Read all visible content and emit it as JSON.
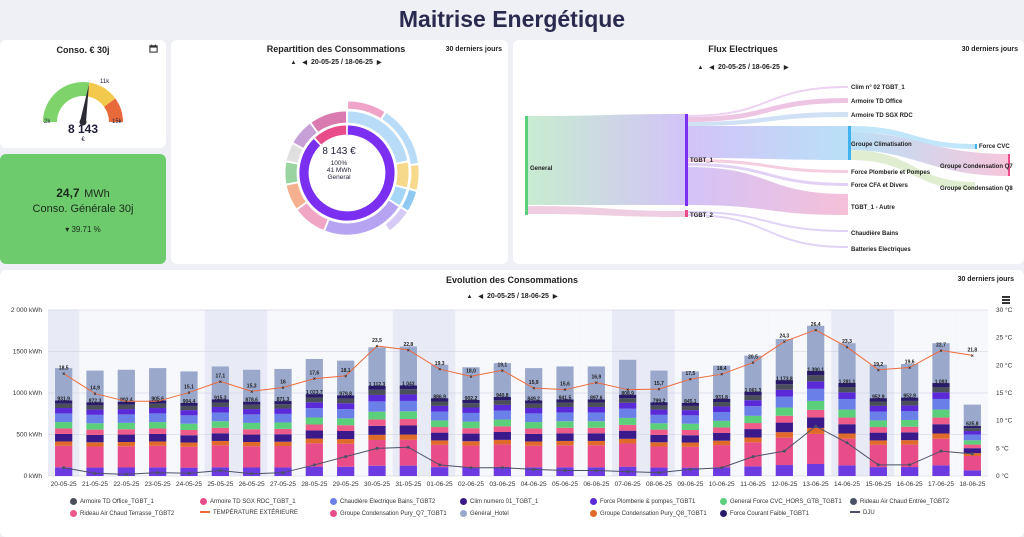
{
  "page_title": "Maitrise Energétique",
  "gauge_card": {
    "title": "Conso. € 30j",
    "value": "8 143",
    "unit": "€",
    "min": "2k",
    "mid": "11k",
    "max": "15k",
    "level": 0.55,
    "colors": {
      "low": "#7ed36a",
      "mid": "#f3c94d",
      "high": "#e86a3a"
    }
  },
  "summary_card": {
    "value": "24,7",
    "unit": "MWh",
    "label": "Conso. Générale 30j",
    "trend": "39.71 %"
  },
  "repartition": {
    "title": "Repartition des Consommations",
    "period": "30 derniers jours",
    "range": "20-05-25 / 18-06-25",
    "center_value": "8 143 €",
    "center_pct": "100%",
    "center_energy": "41 MWh",
    "center_label": "General",
    "inner_segments": [
      {
        "color": "#7b2ff0",
        "fraction": 0.88
      },
      {
        "color": "#e84d8a",
        "fraction": 0.12
      }
    ],
    "middle_segments": [
      {
        "color": "#b8dcf7",
        "fraction": 0.22
      },
      {
        "color": "#f7d98b",
        "fraction": 0.07
      },
      {
        "color": "#a5d6f5",
        "fraction": 0.05
      },
      {
        "color": "#b6a4f2",
        "fraction": 0.22
      },
      {
        "color": "#f0a5c5",
        "fraction": 0.09
      },
      {
        "color": "#f4b08f",
        "fraction": 0.07
      },
      {
        "color": "#9ad4a0",
        "fraction": 0.06
      },
      {
        "color": "#e0e0e0",
        "fraction": 0.05
      },
      {
        "color": "#c8a0d8",
        "fraction": 0.07
      },
      {
        "color": "#d97ab0",
        "fraction": 0.1
      }
    ],
    "outer_segments": [
      {
        "color": "#f0a5c8",
        "fraction": 0.09
      },
      {
        "color": "#b8dcf7",
        "fraction": 0.14
      },
      {
        "color": "#f7d98b",
        "fraction": 0.06
      },
      {
        "color": "#8fc8f0",
        "fraction": 0.05
      },
      {
        "color": "#d6cbf5",
        "fraction": 0.06
      }
    ]
  },
  "flux": {
    "title": "Flux Electriques",
    "period": "30 derniers jours",
    "range": "20-05-25 / 18-06-25",
    "nodes": {
      "general": "General",
      "tgbt1": "TGBT_1",
      "tgbt2": "TGBT_2",
      "clim02": "Clim n° 02 TGBT_1",
      "armoire_office": "Armoire TD Office",
      "armoire_sgx": "Armoire TD SGX RDC",
      "groupe_clim": "Groupe Climatisation",
      "force_plomberie": "Force Plomberie et Pompes",
      "force_cfa": "Force CFA et Divers",
      "tgbt1_autre": "TGBT_1 - Autre",
      "chaudiere": "Chaudière Bains",
      "batteries": "Batteries Electriques",
      "force_cvc": "Force CVC",
      "groupe_q7": "Groupe Condensation Q7",
      "groupe_q8": "Groupe Condensation Q8"
    }
  },
  "evolution": {
    "title": "Evolution des Consommations",
    "period": "30 derniers jours",
    "range": "20-05-25 / 18-06-25"
  },
  "chart_data": {
    "type": "bar",
    "title": "Evolution des Consommations",
    "categories": [
      "20-05-25",
      "21-05-25",
      "22-05-25",
      "23-05-25",
      "24-05-25",
      "25-05-25",
      "26-05-25",
      "27-05-25",
      "28-05-25",
      "29-05-25",
      "30-05-25",
      "31-05-25",
      "01-06-25",
      "02-06-25",
      "03-06-25",
      "04-06-25",
      "05-06-25",
      "06-06-25",
      "07-06-25",
      "08-06-25",
      "09-06-25",
      "10-06-25",
      "11-06-25",
      "12-06-25",
      "13-06-25",
      "14-06-25",
      "15-06-25",
      "16-06-25",
      "17-06-25",
      "18-06-25"
    ],
    "y_left": {
      "ticks": [
        "0 kWh",
        "500 kWh",
        "1000 kWh",
        "1500 kWh",
        "2 000 kWh"
      ],
      "range": [
        0,
        2000
      ]
    },
    "y_right": {
      "ticks": [
        "0 °C",
        "5 °C",
        "10 °C",
        "15 °C",
        "20 °C",
        "25 °C",
        "30 °C"
      ],
      "range": [
        0,
        30
      ]
    },
    "totals": [
      1300,
      1270,
      1280,
      1300,
      1260,
      1320,
      1280,
      1290,
      1410,
      1390,
      1550,
      1560,
      1340,
      1310,
      1360,
      1300,
      1320,
      1320,
      1400,
      1270,
      1260,
      1330,
      1450,
      1650,
      1810,
      1600,
      1340,
      1350,
      1600,
      860
    ],
    "general_labels": [
      "931,9",
      "872,3",
      "902,4",
      "905,6",
      "904,4",
      "915,3",
      "878,6",
      "871,3",
      "1 023,7",
      "979,8",
      "1 112,3",
      "1 043",
      "886,9",
      "902,2",
      "940,8",
      "849,2",
      "941,5",
      "897,6",
      "808,9",
      "799,2",
      "845,1",
      "931,8",
      "1 061,3",
      "1 173,8",
      "1 390,1",
      "1 281,1",
      "952,9",
      "952,9",
      "1 093",
      "635,8"
    ],
    "temperature": [
      18.5,
      14.9,
      13.5,
      13.5,
      15.1,
      17.1,
      15.3,
      16.0,
      17.6,
      18.1,
      23.5,
      22.8,
      19.3,
      18.0,
      19.1,
      15.9,
      15.6,
      16.9,
      15.6,
      15.7,
      17.5,
      18.4,
      20.5,
      24.3,
      26.4,
      23.3,
      19.2,
      19.6,
      22.7,
      21.8
    ],
    "temperature_labels": [
      "18,5",
      "14,9",
      "",
      "",
      "15,1",
      "17,1",
      "15,3",
      "16",
      "17,6",
      "18,1",
      "23,5",
      "22,8",
      "19,3",
      "18,0",
      "19,1",
      "15,9",
      "15,6",
      "16,9",
      "",
      "15,7",
      "17,5",
      "18,4",
      "20,5",
      "24,3",
      "26,4",
      "23,3",
      "19,2",
      "19,6",
      "22,7",
      "21,8"
    ],
    "dju": [
      1.5,
      0.5,
      0.3,
      0.6,
      0.5,
      1.0,
      0.4,
      0.6,
      2.0,
      3.5,
      5.0,
      5.2,
      2.0,
      1.5,
      1.5,
      1.2,
      1.0,
      1.0,
      0.8,
      0.6,
      1.2,
      1.5,
      3.5,
      4.5,
      9.0,
      6.0,
      2.0,
      2.0,
      4.5,
      4.0
    ],
    "weekend_bands": [
      0,
      4,
      5,
      11,
      12,
      18,
      19,
      25,
      26
    ],
    "series_colors": [
      "#4a4f5a",
      "#e84d8a",
      "#6b7fe8",
      "#3a1a8a",
      "#5a2ad8",
      "#5ccf7a",
      "#4a5068",
      "#ee5a8a",
      "#e06a2a",
      "#2a1a6a",
      "#9aa8cc",
      "#ef6a3a"
    ],
    "legend": [
      {
        "name": "Armoire TD Office_TGBT_1",
        "color": "#4a4f5a",
        "kind": "dot"
      },
      {
        "name": "Armoire TD SGX RDC_TGBT_1",
        "color": "#e84d8a",
        "kind": "dot"
      },
      {
        "name": "Chaudière Electrique Bains_TGBT2",
        "color": "#6b7fe8",
        "kind": "dot"
      },
      {
        "name": "Clim numero 01_TGBT_1",
        "color": "#3a1a8a",
        "kind": "dot"
      },
      {
        "name": "Force Plomberie & pompes_TGBT1",
        "color": "#5a2ad8",
        "kind": "dot"
      },
      {
        "name": "General Force CVC_HORS_GTB_TGBT1",
        "color": "#5ccf7a",
        "kind": "dot"
      },
      {
        "name": "Rideau Air Chaud Entrée_TGBT2",
        "color": "#4a5068",
        "kind": "dot"
      },
      {
        "name": "Rideau Air Chaud Terrasse_TGBT2",
        "color": "#ee5a8a",
        "kind": "dot"
      },
      {
        "name": "TEMPÉRATURE EXTÉRIEURE",
        "color": "#ef6a3a",
        "kind": "line"
      },
      {
        "name": "Groupe Condensation Pury_Q7_TGBT1",
        "color": "#e84d8a",
        "kind": "dot"
      },
      {
        "name": "Général_Hotel",
        "color": "#9aa8cc",
        "kind": "dot"
      },
      {
        "name": "Groupe Condensation Pury_Q8_TGBT1",
        "color": "#e06a2a",
        "kind": "dot"
      },
      {
        "name": "Force Courant Faible_TGBT1",
        "color": "#2a1a6a",
        "kind": "dot"
      },
      {
        "name": "DJU",
        "color": "#4a5068",
        "kind": "line"
      }
    ]
  }
}
